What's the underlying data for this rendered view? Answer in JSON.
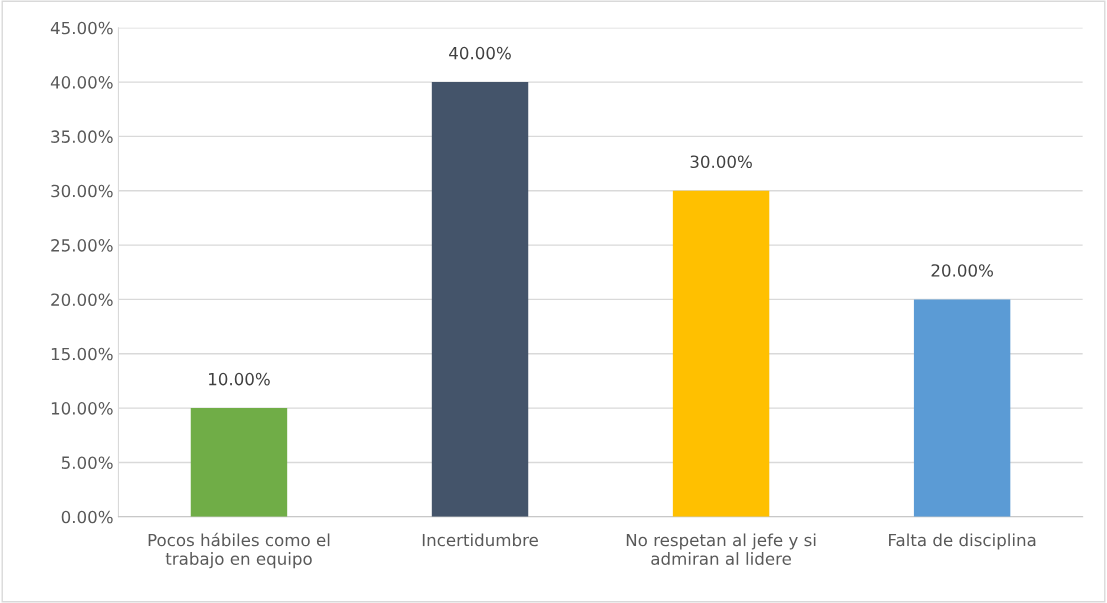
{
  "chart_data": {
    "type": "bar",
    "categories": [
      "Pocos hábiles como el\ntrabajo en equipo",
      "Incertidumbre",
      "No respetan al jefe y si\nadmiran al lidere",
      "Falta de disciplina"
    ],
    "values": [
      10,
      40,
      30,
      20
    ],
    "colors": [
      "#70ad47",
      "#44546a",
      "#ffc000",
      "#5b9bd5"
    ],
    "value_labels": [
      "10.00%",
      "40.00%",
      "30.00%",
      "20.00%"
    ],
    "ylim": [
      0,
      45
    ],
    "yticks": [
      {
        "value": 0,
        "label": "0.00%"
      },
      {
        "value": 5,
        "label": "5.00%"
      },
      {
        "value": 10,
        "label": "10.00%"
      },
      {
        "value": 15,
        "label": "15.00%"
      },
      {
        "value": 20,
        "label": "20.00%"
      },
      {
        "value": 25,
        "label": "25.00%"
      },
      {
        "value": 30,
        "label": "30.00%"
      },
      {
        "value": 35,
        "label": "35.00%"
      },
      {
        "value": 40,
        "label": "40.00%"
      },
      {
        "value": 45,
        "label": "45.00%"
      }
    ],
    "grid": "y"
  }
}
